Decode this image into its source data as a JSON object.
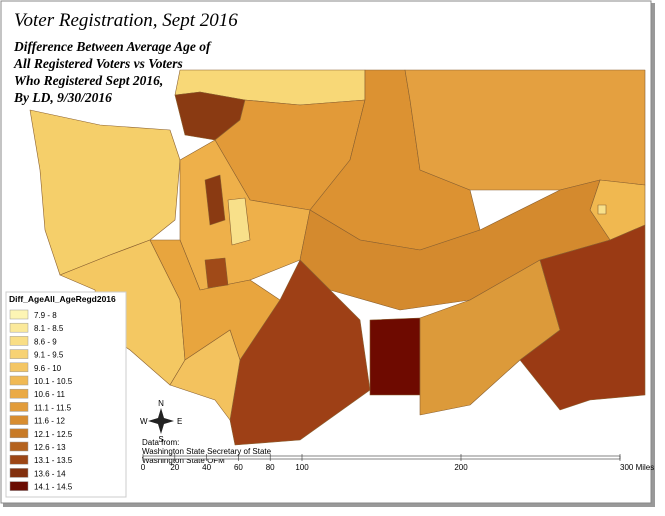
{
  "title": "Voter Registration, Sept 2016",
  "subtitle": [
    "Difference Between Average Age of",
    "All Registered Voters vs Voters",
    "Who Registered Sept 2016,",
    "By LD, 9/30/2016"
  ],
  "legend": {
    "title": "Diff_AgeAll_AgeRegd2016",
    "items": [
      {
        "label": "7.9 - 8",
        "color": "#fdf5b4"
      },
      {
        "label": "8.1 - 8.5",
        "color": "#fbe99a"
      },
      {
        "label": "8.6 - 9",
        "color": "#f9de86"
      },
      {
        "label": "9.1 - 9.5",
        "color": "#f7d274"
      },
      {
        "label": "9.6 - 10",
        "color": "#f4c664"
      },
      {
        "label": "10.1 - 10.5",
        "color": "#f0b954"
      },
      {
        "label": "10.6 - 11",
        "color": "#eaaa46"
      },
      {
        "label": "11.1 - 11.5",
        "color": "#e29c3a"
      },
      {
        "label": "11.6 - 12",
        "color": "#d88d30"
      },
      {
        "label": "12.1 - 12.5",
        "color": "#c87a26"
      },
      {
        "label": "12.6 - 13",
        "color": "#b4621e"
      },
      {
        "label": "13.1 - 13.5",
        "color": "#9c4616"
      },
      {
        "label": "13.6 - 14",
        "color": "#82300e"
      },
      {
        "label": "14.1 - 14.5",
        "color": "#6a0c02"
      }
    ]
  },
  "source": [
    "Data from:",
    "Washington State Secretary of State",
    "Washington State OFM"
  ],
  "compass": {
    "north": "N",
    "south": "S",
    "east": "E",
    "west": "W"
  },
  "scale_bar": {
    "range": [
      0,
      300
    ],
    "ticks": [
      0,
      20,
      40,
      60,
      80,
      100,
      200,
      {
        "value": 300,
        "label": "300 Miles"
      }
    ]
  }
}
